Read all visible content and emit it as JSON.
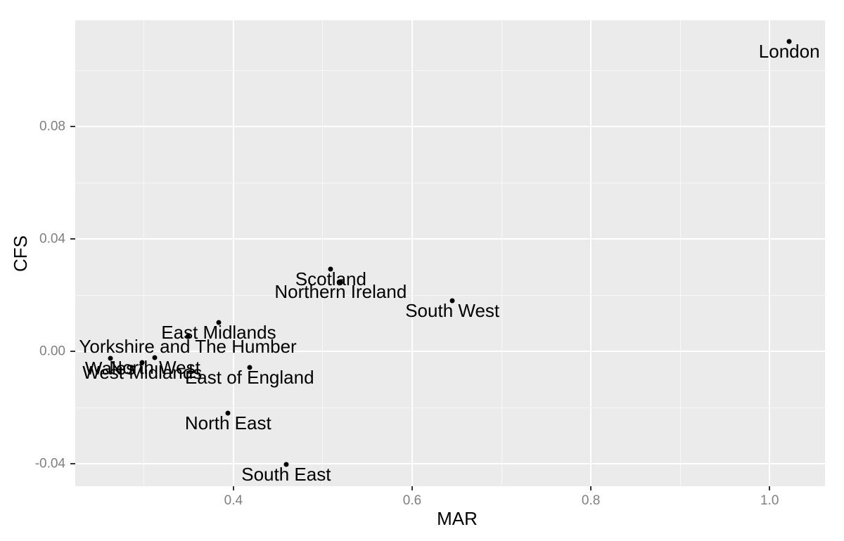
{
  "chart_data": {
    "type": "scatter",
    "title": "",
    "xlabel": "MAR",
    "ylabel": "CFS",
    "xlim": [
      0.223,
      1.062
    ],
    "ylim": [
      -0.048,
      0.1178
    ],
    "grid": true,
    "legend": "none",
    "x_ticks": {
      "values": [
        0.4,
        0.6,
        0.8,
        1.0
      ],
      "labels": [
        "0.4",
        "0.6",
        "0.8",
        "1.0"
      ]
    },
    "y_ticks": {
      "values": [
        0.08,
        0.04,
        0.0,
        -0.04
      ],
      "labels": [
        "0.08",
        "0.04",
        "0.00",
        "-0.04"
      ]
    },
    "x_minor_ticks": [
      0.3,
      0.5,
      0.7,
      0.9
    ],
    "y_minor_ticks": [
      0.1,
      0.06,
      0.02,
      -0.02
    ],
    "points": [
      {
        "label": "London",
        "x": 1.022,
        "y": 0.1103
      },
      {
        "label": "Scotland",
        "x": 0.509,
        "y": 0.0293
      },
      {
        "label": "Northern Ireland",
        "x": 0.52,
        "y": 0.0248
      },
      {
        "label": "South West",
        "x": 0.645,
        "y": 0.018
      },
      {
        "label": "East Midlands",
        "x": 0.3835,
        "y": 0.0103
      },
      {
        "label": "Yorkshire and The Humber",
        "x": 0.349,
        "y": 0.0053
      },
      {
        "label": "North West",
        "x": 0.312,
        "y": -0.0023
      },
      {
        "label": "Wales",
        "x": 0.262,
        "y": -0.0025
      },
      {
        "label": "West Midlands",
        "x": 0.298,
        "y": -0.004
      },
      {
        "label": "East of England",
        "x": 0.418,
        "y": -0.0058
      },
      {
        "label": "North East",
        "x": 0.394,
        "y": -0.022
      },
      {
        "label": "South East",
        "x": 0.459,
        "y": -0.0403
      }
    ]
  },
  "style": {
    "panel_bg": "#EBEBEB",
    "grid_major_color": "#FFFFFF",
    "grid_minor_color": "rgba(255,255,255,0.6)",
    "tick_mark_color": "#333333",
    "tick_label_color": "#7F7F7F",
    "point_color": "#000000",
    "label_color": "#000000"
  }
}
